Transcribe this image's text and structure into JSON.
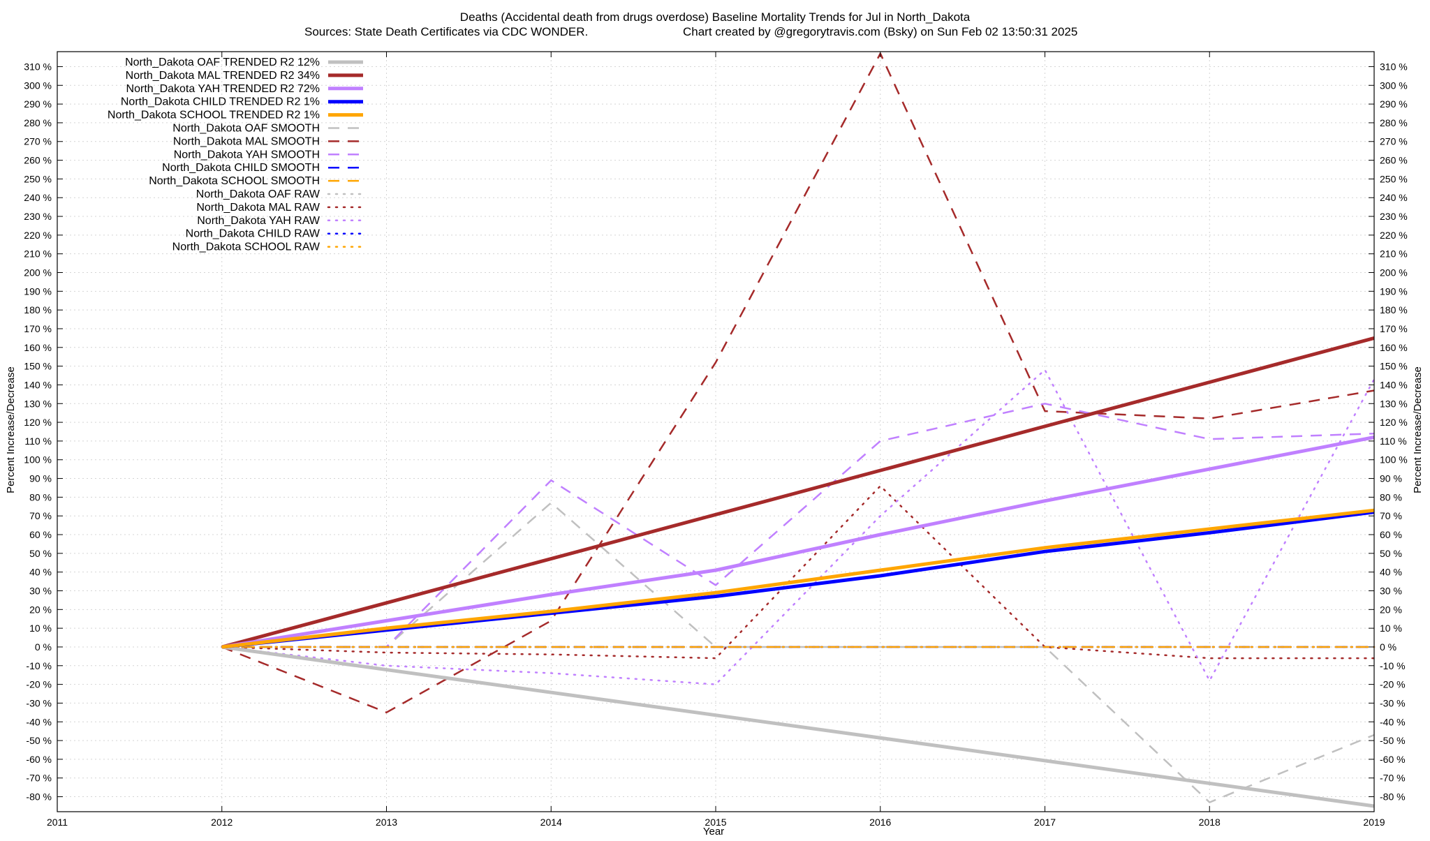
{
  "chart_data": {
    "type": "line",
    "title": "Deaths (Accidental death from drugs overdose)  Baseline Mortality Trends for Jul in North_Dakota",
    "subtitle_left": "Sources: State Death Certificates via CDC WONDER.",
    "subtitle_right": "Chart created by @gregorytravis.com (Bsky) on Sun Feb 02 13:50:31 2025",
    "xlabel": "Year",
    "ylabel_left": "Percent Increase/Decrease",
    "ylabel_right": "Percent Increase/Decrease",
    "xlim": [
      2011,
      2019
    ],
    "ylim": [
      -88,
      318
    ],
    "x_ticks": [
      "2011",
      "2012",
      "2013",
      "2014",
      "2015",
      "2016",
      "2017",
      "2018",
      "2019"
    ],
    "y_ticks": [
      -80,
      -70,
      -60,
      -50,
      -40,
      -30,
      -20,
      -10,
      0,
      10,
      20,
      30,
      40,
      50,
      60,
      70,
      80,
      90,
      100,
      110,
      120,
      130,
      140,
      150,
      160,
      170,
      180,
      190,
      200,
      210,
      220,
      230,
      240,
      250,
      260,
      270,
      280,
      290,
      300,
      310
    ],
    "y_tick_suffix": " %",
    "grid": true,
    "legend_position": "top-left",
    "colors": {
      "OAF": "#c0c0c0",
      "MAL": "#a52a2a",
      "YAH": "#c080ff",
      "CHILD": "#0000ff",
      "SCHOOL": "#ffa500"
    },
    "series": [
      {
        "name": "North_Dakota OAF TRENDED R2  12%",
        "group": "OAF",
        "style": "solid",
        "x": [
          2012,
          2019
        ],
        "y": [
          0,
          -85
        ]
      },
      {
        "name": "North_Dakota MAL TRENDED R2  34%",
        "group": "MAL",
        "style": "solid",
        "x": [
          2012,
          2019
        ],
        "y": [
          0,
          165
        ]
      },
      {
        "name": "North_Dakota YAH TRENDED R2  72%",
        "group": "YAH",
        "style": "solid",
        "x": [
          2012,
          2013,
          2014,
          2015,
          2016,
          2017,
          2018,
          2019
        ],
        "y": [
          0,
          14,
          28,
          41,
          60,
          78,
          95,
          112
        ]
      },
      {
        "name": "North_Dakota CHILD TRENDED R2   1%",
        "group": "CHILD",
        "style": "solid",
        "x": [
          2012,
          2013,
          2014,
          2015,
          2016,
          2017,
          2018,
          2019
        ],
        "y": [
          0,
          9,
          18,
          27,
          38,
          51,
          61,
          72
        ]
      },
      {
        "name": "North_Dakota SCHOOL TRENDED R2   1%",
        "group": "SCHOOL",
        "style": "solid",
        "x": [
          2012,
          2013,
          2014,
          2015,
          2016,
          2017,
          2018,
          2019
        ],
        "y": [
          0,
          10,
          19,
          29,
          41,
          53,
          63,
          73
        ]
      },
      {
        "name": "North_Dakota OAF SMOOTH",
        "group": "OAF",
        "style": "dashed",
        "x": [
          2012,
          2013,
          2014,
          2015,
          2016,
          2017,
          2018,
          2019
        ],
        "y": [
          0,
          0,
          77,
          0,
          0,
          0,
          -83,
          -47
        ]
      },
      {
        "name": "North_Dakota MAL SMOOTH",
        "group": "MAL",
        "style": "dashed",
        "x": [
          2012,
          2013,
          2014,
          2015,
          2016,
          2017,
          2018,
          2019
        ],
        "y": [
          0,
          -35,
          14,
          152,
          317,
          126,
          122,
          137
        ]
      },
      {
        "name": "North_Dakota YAH SMOOTH",
        "group": "YAH",
        "style": "dashed",
        "x": [
          2012,
          2013,
          2014,
          2015,
          2016,
          2017,
          2018,
          2019
        ],
        "y": [
          0,
          0,
          89,
          33,
          110,
          130,
          111,
          114
        ]
      },
      {
        "name": "North_Dakota CHILD SMOOTH",
        "group": "CHILD",
        "style": "dashed",
        "x": [
          2012,
          2019
        ],
        "y": [
          0,
          0
        ]
      },
      {
        "name": "North_Dakota SCHOOL SMOOTH",
        "group": "SCHOOL",
        "style": "dashed",
        "x": [
          2012,
          2019
        ],
        "y": [
          0,
          0
        ]
      },
      {
        "name": "North_Dakota OAF RAW",
        "group": "OAF",
        "style": "dotted",
        "x": [
          2012,
          2019
        ],
        "y": [
          0,
          0
        ]
      },
      {
        "name": "North_Dakota MAL RAW",
        "group": "MAL",
        "style": "dotted",
        "x": [
          2012,
          2013,
          2014,
          2015,
          2016,
          2017,
          2018,
          2019
        ],
        "y": [
          0,
          -3,
          -4,
          -6,
          86,
          0,
          -6,
          -6
        ]
      },
      {
        "name": "North_Dakota YAH RAW",
        "group": "YAH",
        "style": "dotted",
        "x": [
          2012,
          2013,
          2014,
          2015,
          2016,
          2017,
          2018,
          2019
        ],
        "y": [
          0,
          -10,
          -14,
          -20,
          70,
          148,
          -18,
          143
        ]
      },
      {
        "name": "North_Dakota CHILD RAW",
        "group": "CHILD",
        "style": "dotted",
        "x": [
          2012,
          2019
        ],
        "y": [
          0,
          0
        ]
      },
      {
        "name": "North_Dakota SCHOOL RAW",
        "group": "SCHOOL",
        "style": "dotted",
        "x": [
          2012,
          2019
        ],
        "y": [
          0,
          0
        ]
      }
    ]
  }
}
